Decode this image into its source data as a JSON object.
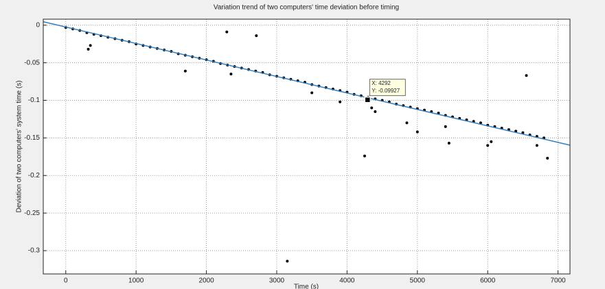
{
  "chart_data": {
    "type": "scatter",
    "title": "Variation trend of two computers' time deviation before timing",
    "x_label": "Time (s)",
    "y_label": "Deviation of two computers' system time (s)",
    "x": [
      0,
      100,
      200,
      300,
      400,
      500,
      600,
      700,
      800,
      900,
      1000,
      1100,
      1200,
      1300,
      1400,
      1500,
      1600,
      1700,
      1800,
      1900,
      2000,
      2100,
      2200,
      2300,
      2400,
      2500,
      2600,
      2700,
      2800,
      2900,
      3000,
      3100,
      3200,
      3300,
      3400,
      3500,
      3600,
      3700,
      3800,
      3900,
      4000,
      4100,
      4200,
      4300,
      4400,
      4500,
      4600,
      4700,
      4800,
      4900,
      5000,
      5100,
      5200,
      5300,
      5400,
      5500,
      5600,
      5700,
      5800,
      5900,
      6000,
      6100,
      6200,
      6300,
      6400,
      6500,
      6600,
      6700,
      6800,
      320,
      350,
      1700,
      2350,
      3500,
      3900,
      4350,
      4400,
      4850,
      5400,
      6000,
      6050,
      6700,
      2290,
      2710,
      6550,
      3150,
      4250,
      6850,
      5450,
      5000
    ],
    "values": [
      -0.003,
      -0.005,
      -0.007,
      -0.01,
      -0.012,
      -0.014,
      -0.016,
      -0.018,
      -0.02,
      -0.022,
      -0.025,
      -0.027,
      -0.029,
      -0.031,
      -0.033,
      -0.035,
      -0.038,
      -0.04,
      -0.042,
      -0.044,
      -0.046,
      -0.048,
      -0.051,
      -0.053,
      -0.055,
      -0.057,
      -0.059,
      -0.061,
      -0.063,
      -0.066,
      -0.068,
      -0.07,
      -0.072,
      -0.074,
      -0.076,
      -0.079,
      -0.081,
      -0.083,
      -0.085,
      -0.087,
      -0.089,
      -0.092,
      -0.094,
      -0.096,
      -0.098,
      -0.1,
      -0.102,
      -0.105,
      -0.107,
      -0.109,
      -0.111,
      -0.113,
      -0.115,
      -0.117,
      -0.12,
      -0.122,
      -0.124,
      -0.126,
      -0.128,
      -0.13,
      -0.133,
      -0.135,
      -0.137,
      -0.139,
      -0.141,
      -0.143,
      -0.146,
      -0.148,
      -0.15,
      -0.032,
      -0.027,
      -0.061,
      -0.065,
      -0.09,
      -0.102,
      -0.11,
      -0.115,
      -0.13,
      -0.135,
      -0.16,
      -0.155,
      -0.16,
      -0.009,
      -0.014,
      -0.067,
      -0.314,
      -0.174,
      -0.177,
      -0.157,
      -0.142
    ],
    "color": "#000000",
    "fit_line": {
      "x": [
        -320,
        7170
      ],
      "values": [
        0.0046,
        -0.1597
      ],
      "color": "#2f7fc1"
    },
    "datatip": {
      "x": 4292,
      "y": -0.09927,
      "label_x": "X: 4292",
      "label_y": "Y: -0.09927"
    },
    "xlim": [
      -320,
      7170
    ],
    "ylim": [
      -0.331,
      0.008
    ],
    "xticks": [
      0,
      1000,
      2000,
      3000,
      4000,
      5000,
      6000,
      7000
    ],
    "yticks": [
      0,
      -0.05,
      -0.1,
      -0.15,
      -0.2,
      -0.25,
      -0.3
    ],
    "grid": true
  }
}
